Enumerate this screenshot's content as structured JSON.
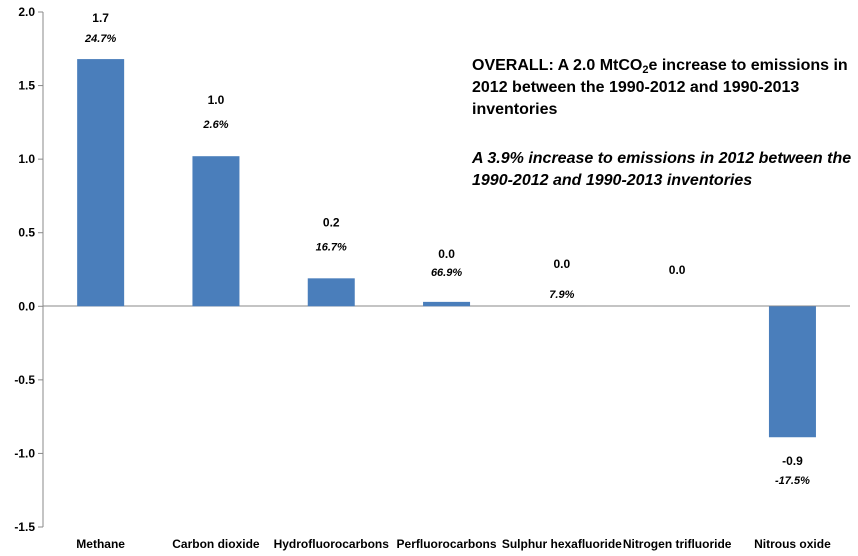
{
  "chart_data": {
    "type": "bar",
    "categories": [
      "Methane",
      "Carbon dioxide",
      "Hydrofluorocarbons",
      "Perfluorocarbons",
      "Sulphur hexafluoride",
      "Nitrogen trifluoride",
      "Nitrous oxide"
    ],
    "values": [
      1.68,
      1.02,
      0.19,
      0.03,
      0.0,
      0.0,
      -0.89
    ],
    "value_labels": [
      "1.7",
      "1.0",
      "0.2",
      "0.0",
      "0.0",
      "0.0",
      "-0.9"
    ],
    "percent_labels": [
      "24.7%",
      "2.6%",
      "16.7%",
      "66.9%",
      "7.9%",
      "",
      "-17.5%"
    ],
    "ylim": [
      -1.5,
      2.0
    ],
    "yticks": [
      "2.0",
      "1.5",
      "1.0",
      "0.5",
      "0.0",
      "-0.5",
      "-1.0",
      "-1.5"
    ],
    "ytick_values": [
      2.0,
      1.5,
      1.0,
      0.5,
      0.0,
      -0.5,
      -1.0,
      -1.5
    ],
    "bar_color": "#4a7ebb",
    "grid": false,
    "xlabel": "",
    "ylabel": "",
    "title": ""
  },
  "annotations": {
    "overall_prefix": "OVERALL:  A 2.0 MtCO",
    "overall_sub": "2",
    "overall_suffix": "e increase to emissions in 2012 between the 1990-2012 and 1990-2013 inventories",
    "percent_note": "A 3.9% increase to emissions in 2012 between the 1990-2012 and 1990-2013 inventories"
  }
}
